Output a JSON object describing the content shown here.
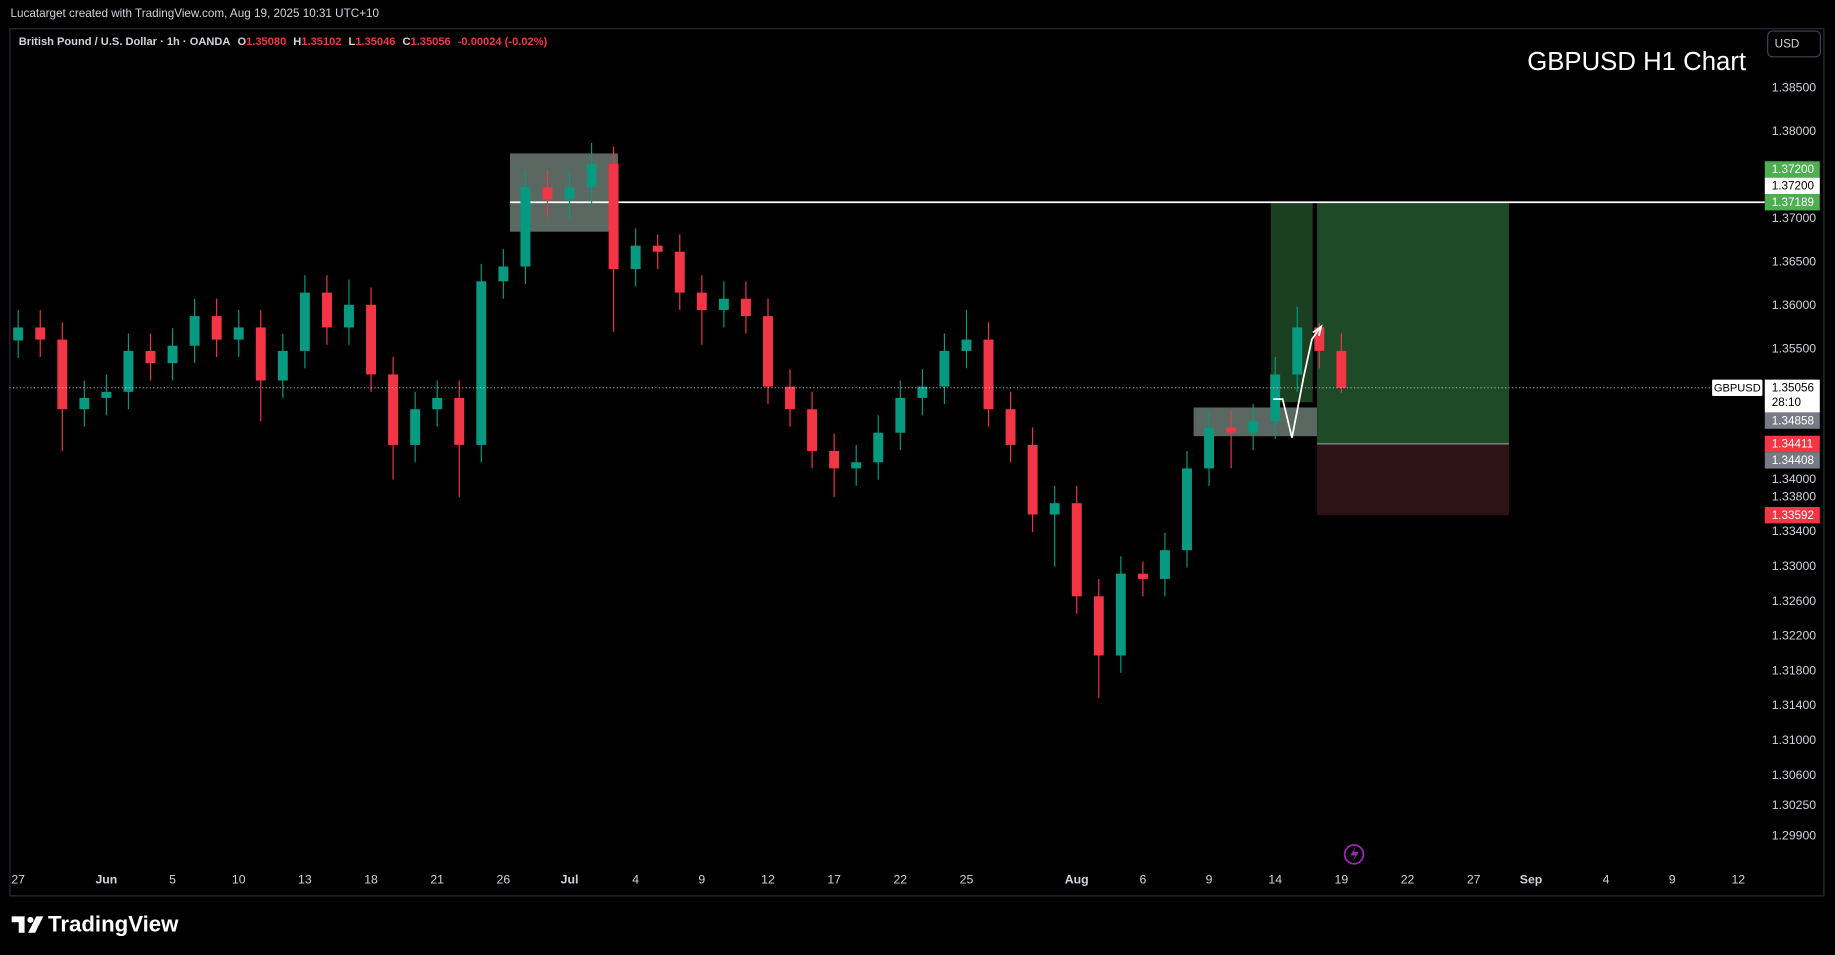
{
  "header": {
    "attribution": "Lucatarget created with TradingView.com, Aug 19, 2025 10:31 UTC+10"
  },
  "chart_data": {
    "type": "candlestick",
    "title": "GBPUSD H1 Chart",
    "symbol_description": "British Pound / U.S. Dollar · 1h · OANDA",
    "ohlc_legend": [
      {
        "key": "O",
        "value": 1.3508,
        "label": "1.35080"
      },
      {
        "key": "H",
        "value": 1.35102,
        "label": "1.35102"
      },
      {
        "key": "L",
        "value": 1.35046,
        "label": "1.35046"
      },
      {
        "key": "C",
        "value": 1.35056,
        "label": "1.35056"
      }
    ],
    "change": "-0.00024 (-0.02%)",
    "currency": "USD",
    "symbol": "GBPUSD",
    "countdown": "28:10",
    "colors": {
      "up": "#089981",
      "down": "#f23645"
    },
    "x": [
      0,
      1,
      2,
      3,
      4,
      5,
      6,
      7,
      8,
      9,
      10,
      11,
      12,
      13,
      14,
      15,
      16,
      17,
      18,
      19,
      20,
      21,
      22,
      23,
      24,
      25,
      26,
      27,
      28,
      29,
      30,
      31,
      32,
      33,
      34,
      35,
      36,
      37,
      38,
      39,
      40,
      41,
      42,
      43,
      44,
      45,
      46,
      47,
      48,
      49,
      50,
      51,
      52,
      53,
      54,
      55,
      56,
      57,
      58,
      59,
      60
    ],
    "open": [
      1.356,
      1.3575,
      1.3561,
      1.3481,
      1.3494,
      1.3501,
      1.3548,
      1.3534,
      1.3554,
      1.3588,
      1.3561,
      1.3575,
      1.3514,
      1.3548,
      1.3615,
      1.3575,
      1.3601,
      1.3521,
      1.344,
      1.3481,
      1.3494,
      1.344,
      1.3628,
      1.3645,
      1.3736,
      1.3722,
      1.3736,
      1.3763,
      1.3642,
      1.3669,
      1.3662,
      1.3615,
      1.3595,
      1.3608,
      1.3588,
      1.3507,
      1.3481,
      1.3433,
      1.3413,
      1.342,
      1.3454,
      1.3494,
      1.3507,
      1.3548,
      1.3561,
      1.3481,
      1.344,
      1.336,
      1.3373,
      1.3266,
      1.3198,
      1.3292,
      1.3286,
      1.3319,
      1.3413,
      1.346,
      1.3454,
      1.3467,
      1.3521,
      1.3575,
      1.3548
    ],
    "high": [
      1.3595,
      1.3595,
      1.3581,
      1.3514,
      1.3521,
      1.3568,
      1.3568,
      1.3574,
      1.3608,
      1.3608,
      1.3595,
      1.3595,
      1.3568,
      1.3635,
      1.3635,
      1.363,
      1.3621,
      1.3541,
      1.3501,
      1.3514,
      1.3514,
      1.3648,
      1.3665,
      1.3756,
      1.3756,
      1.3756,
      1.3787,
      1.3783,
      1.3689,
      1.3682,
      1.3682,
      1.3635,
      1.3628,
      1.3628,
      1.3608,
      1.3527,
      1.3501,
      1.3453,
      1.344,
      1.3474,
      1.3514,
      1.3527,
      1.3568,
      1.3595,
      1.3581,
      1.3501,
      1.346,
      1.3393,
      1.3393,
      1.3286,
      1.3312,
      1.3306,
      1.3339,
      1.3433,
      1.348,
      1.348,
      1.3487,
      1.3541,
      1.3599,
      1.358,
      1.3568
    ],
    "low": [
      1.354,
      1.3541,
      1.3433,
      1.3461,
      1.3474,
      1.3481,
      1.3514,
      1.3514,
      1.3534,
      1.3541,
      1.3541,
      1.3467,
      1.3494,
      1.3528,
      1.3555,
      1.3555,
      1.3501,
      1.34,
      1.342,
      1.3461,
      1.338,
      1.342,
      1.3608,
      1.3625,
      1.3702,
      1.37,
      1.3716,
      1.357,
      1.3622,
      1.3642,
      1.3595,
      1.3555,
      1.3575,
      1.3568,
      1.3487,
      1.3461,
      1.3413,
      1.338,
      1.3393,
      1.34,
      1.3434,
      1.3474,
      1.3487,
      1.3528,
      1.3461,
      1.342,
      1.334,
      1.33,
      1.3246,
      1.3149,
      1.3178,
      1.3266,
      1.3266,
      1.3299,
      1.3393,
      1.3413,
      1.3434,
      1.3447,
      1.3501,
      1.3528,
      1.35
    ],
    "close": [
      1.3575,
      1.3561,
      1.3481,
      1.3494,
      1.3501,
      1.3548,
      1.3534,
      1.3554,
      1.3588,
      1.3561,
      1.3575,
      1.3514,
      1.3548,
      1.3615,
      1.3575,
      1.3601,
      1.3521,
      1.344,
      1.3481,
      1.3494,
      1.344,
      1.3628,
      1.3645,
      1.3736,
      1.3722,
      1.3736,
      1.3763,
      1.3642,
      1.3669,
      1.3662,
      1.3615,
      1.3595,
      1.3608,
      1.3588,
      1.3507,
      1.3481,
      1.3433,
      1.3413,
      1.342,
      1.3454,
      1.3494,
      1.3507,
      1.3548,
      1.3561,
      1.3481,
      1.344,
      1.336,
      1.3373,
      1.3266,
      1.3198,
      1.3292,
      1.3286,
      1.3319,
      1.3413,
      1.346,
      1.3454,
      1.3467,
      1.3521,
      1.3575,
      1.3548,
      1.35056
    ],
    "xlim": [
      -0.4,
      79.2
    ],
    "xticks": [
      {
        "value": 0,
        "label": "27"
      },
      {
        "value": 4,
        "label": "Jun"
      },
      {
        "value": 7,
        "label": "5"
      },
      {
        "value": 10,
        "label": "10"
      },
      {
        "value": 13,
        "label": "13"
      },
      {
        "value": 16,
        "label": "18"
      },
      {
        "value": 19,
        "label": "21"
      },
      {
        "value": 22,
        "label": "26"
      },
      {
        "value": 25,
        "label": "Jul"
      },
      {
        "value": 28,
        "label": "4"
      },
      {
        "value": 31,
        "label": "9"
      },
      {
        "value": 34,
        "label": "12"
      },
      {
        "value": 37,
        "label": "17"
      },
      {
        "value": 40,
        "label": "22"
      },
      {
        "value": 43,
        "label": "25"
      },
      {
        "value": 48,
        "label": "Aug"
      },
      {
        "value": 51,
        "label": "6"
      },
      {
        "value": 54,
        "label": "9"
      },
      {
        "value": 57,
        "label": "14"
      },
      {
        "value": 60,
        "label": "19"
      },
      {
        "value": 63,
        "label": "22"
      },
      {
        "value": 66,
        "label": "27"
      },
      {
        "value": 68.6,
        "label": "Sep"
      },
      {
        "value": 72,
        "label": "4"
      },
      {
        "value": 75,
        "label": "9"
      },
      {
        "value": 78,
        "label": "12"
      }
    ],
    "ylim": [
      1.2956,
      1.3919
    ],
    "yticks": [
      {
        "value": 1.385,
        "label": "1.38500"
      },
      {
        "value": 1.38,
        "label": "1.38000"
      },
      {
        "value": 1.37,
        "label": "1.37000"
      },
      {
        "value": 1.365,
        "label": "1.36500"
      },
      {
        "value": 1.36,
        "label": "1.36000"
      },
      {
        "value": 1.355,
        "label": "1.35500"
      },
      {
        "value": 1.34,
        "label": "1.34000"
      },
      {
        "value": 1.338,
        "label": "1.33800"
      },
      {
        "value": 1.334,
        "label": "1.33400"
      },
      {
        "value": 1.33,
        "label": "1.33000"
      },
      {
        "value": 1.326,
        "label": "1.32600"
      },
      {
        "value": 1.322,
        "label": "1.32200"
      },
      {
        "value": 1.318,
        "label": "1.31800"
      },
      {
        "value": 1.314,
        "label": "1.31400"
      },
      {
        "value": 1.31,
        "label": "1.31000"
      },
      {
        "value": 1.306,
        "label": "1.30600"
      },
      {
        "value": 1.3025,
        "label": "1.30250"
      },
      {
        "value": 1.299,
        "label": "1.29900"
      }
    ],
    "grid": false,
    "resistance_level": 1.37189,
    "zones": [
      {
        "x": [
          22.3,
          27.2
        ],
        "y": [
          1.3685,
          1.3775
        ],
        "color": "#6b7a72"
      },
      {
        "x": [
          53.3,
          58.9
        ],
        "y": [
          1.345,
          1.3483
        ],
        "color": "#6b7a72"
      },
      {
        "x": [
          56.8,
          58.7
        ],
        "y": [
          1.3489,
          1.37189
        ],
        "color": "#1e4a27"
      }
    ],
    "long_position": {
      "x": [
        58.9,
        67.6
      ],
      "entry": 1.34411,
      "target": 1.37189,
      "stop": 1.33592
    },
    "last_price_label": {
      "value": 1.35056,
      "label": "1.35056"
    },
    "price_labels": [
      {
        "value": 1.372,
        "label": "1.37200",
        "color": "#4caf50"
      },
      {
        "value": 1.372,
        "label": "1.37200",
        "color": "#ffffff"
      },
      {
        "value": 1.37189,
        "label": "1.37189",
        "color": "#4caf50"
      },
      {
        "value": 1.34858,
        "label": "1.34858",
        "color": "#787b86"
      },
      {
        "value": 1.34411,
        "label": "1.34411",
        "color": "#f23645"
      },
      {
        "value": 1.34408,
        "label": "1.34408",
        "color": "#787b86"
      },
      {
        "value": 1.33592,
        "label": "1.33592",
        "color": "#f23645"
      }
    ]
  },
  "footer": {
    "brand": "TradingView"
  }
}
